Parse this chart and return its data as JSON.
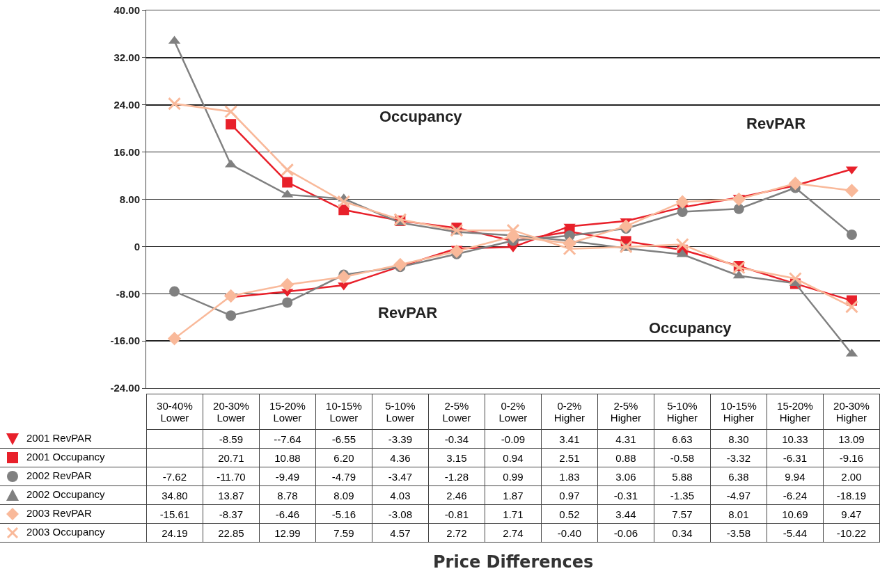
{
  "chart_data": {
    "type": "line",
    "categories": [
      "30-40% Lower",
      "20-30% Lower",
      "15-20% Lower",
      "10-15% Lower",
      "5-10% Lower",
      "2-5% Lower",
      "0-2% Lower",
      "0-2% Higher",
      "2-5% Higher",
      "5-10% Higher",
      "10-15% Higher",
      "15-20% Higher",
      "20-30% Higher"
    ],
    "ylim": [
      -24,
      40
    ],
    "yticks": [
      {
        "value": -24,
        "label": "-24.00"
      },
      {
        "value": -16,
        "label": "-16.00"
      },
      {
        "value": -8,
        "label": "-8.00"
      },
      {
        "value": 0,
        "label": "0"
      },
      {
        "value": 8,
        "label": "8.00"
      },
      {
        "value": 16,
        "label": "16.00"
      },
      {
        "value": 24,
        "label": "24.00"
      },
      {
        "value": 32,
        "label": "32.00"
      },
      {
        "value": 40,
        "label": "40.00"
      }
    ],
    "grid": "y",
    "series": [
      {
        "name": "2001 RevPAR",
        "color": "#e8202a",
        "marker": "triangle-down",
        "values": [
          null,
          -8.59,
          -7.64,
          -6.55,
          -3.39,
          -0.34,
          -0.09,
          3.41,
          4.31,
          6.63,
          8.3,
          10.33,
          13.09
        ],
        "value_labels": [
          null,
          "-8.59",
          "--7.64",
          "-6.55",
          "-3.39",
          "-0.34",
          "-0.09",
          "3.41",
          "4.31",
          "6.63",
          "8.30",
          "10.33",
          "13.09"
        ]
      },
      {
        "name": "2001 Occupancy",
        "color": "#e8202a",
        "marker": "square",
        "values": [
          null,
          20.71,
          10.88,
          6.2,
          4.36,
          3.15,
          0.94,
          2.51,
          0.88,
          -0.58,
          -3.32,
          -6.31,
          -9.16
        ],
        "value_labels": [
          null,
          "20.71",
          "10.88",
          "6.20",
          "4.36",
          "3.15",
          "0.94",
          "2.51",
          "0.88",
          "-0.58",
          "-3.32",
          "-6.31",
          "-9.16"
        ]
      },
      {
        "name": "2002 RevPAR",
        "color": "#808080",
        "marker": "circle",
        "values": [
          -7.62,
          -11.7,
          -9.49,
          -4.79,
          -3.47,
          -1.28,
          0.99,
          1.83,
          3.06,
          5.88,
          6.38,
          9.94,
          2.0
        ],
        "value_labels": [
          "-7.62",
          "-11.70",
          "-9.49",
          "-4.79",
          "-3.47",
          "-1.28",
          "0.99",
          "1.83",
          "3.06",
          "5.88",
          "6.38",
          "9.94",
          "2.00"
        ]
      },
      {
        "name": "2002 Occupancy",
        "color": "#808080",
        "marker": "triangle",
        "values": [
          34.8,
          13.87,
          8.78,
          8.09,
          4.03,
          2.46,
          1.87,
          0.97,
          -0.31,
          -1.35,
          -4.97,
          -6.24,
          -18.19
        ],
        "value_labels": [
          "34.80",
          "13.87",
          "8.78",
          "8.09",
          "4.03",
          "2.46",
          "1.87",
          "0.97",
          "-0.31",
          "-1.35",
          "-4.97",
          "-6.24",
          "-18.19"
        ]
      },
      {
        "name": "2003 RevPAR",
        "color": "#f9b99a",
        "marker": "diamond",
        "values": [
          -15.61,
          -8.37,
          -6.46,
          -5.16,
          -3.08,
          -0.81,
          1.71,
          0.52,
          3.44,
          7.57,
          8.01,
          10.69,
          9.47
        ],
        "value_labels": [
          "-15.61",
          "-8.37",
          "-6.46",
          "-5.16",
          "-3.08",
          "-0.81",
          "1.71",
          "0.52",
          "3.44",
          "7.57",
          "8.01",
          "10.69",
          "9.47"
        ]
      },
      {
        "name": "2003 Occupancy",
        "color": "#f9b99a",
        "marker": "cross",
        "values": [
          24.19,
          22.85,
          12.99,
          7.59,
          4.57,
          2.72,
          2.74,
          -0.4,
          -0.06,
          0.34,
          -3.58,
          -5.44,
          -10.22
        ],
        "value_labels": [
          "24.19",
          "22.85",
          "12.99",
          "7.59",
          "4.57",
          "2.72",
          "2.74",
          "-0.40",
          "-0.06",
          "0.34",
          "-3.58",
          "-5.44",
          "-10.22"
        ]
      }
    ],
    "legend": "bottom left",
    "annotations": [
      "Occupancy",
      "RevPAR",
      "RevPAR",
      "Occupancy",
      "Price Differences"
    ]
  }
}
